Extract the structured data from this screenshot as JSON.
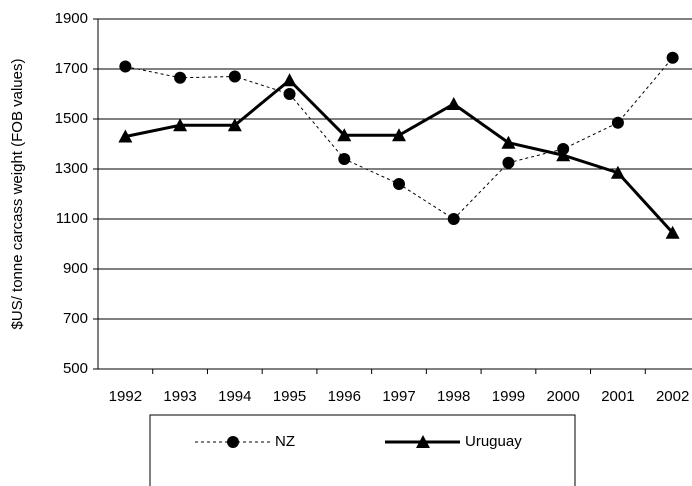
{
  "chart_data": {
    "type": "line",
    "y_label": "$US/ tonne carcass weight (FOB values)",
    "categories": [
      "1992",
      "1993",
      "1994",
      "1995",
      "1996",
      "1997",
      "1998",
      "1999",
      "2000",
      "2001",
      "2002"
    ],
    "series": [
      {
        "name": "NZ",
        "color": "#000000",
        "dashed": true,
        "marker": "circle",
        "values": [
          1710,
          1665,
          1670,
          1600,
          1340,
          1240,
          1100,
          1325,
          1380,
          1485,
          1745
        ]
      },
      {
        "name": "Uruguay",
        "color": "#000000",
        "dashed": false,
        "marker": "triangle",
        "values": [
          1430,
          1475,
          1475,
          1655,
          1435,
          1435,
          1560,
          1405,
          1355,
          1285,
          1045
        ]
      }
    ],
    "ylim": [
      500,
      1900
    ],
    "yticks": [
      500,
      700,
      900,
      1100,
      1300,
      1500,
      1700,
      1900
    ],
    "grid": true
  }
}
